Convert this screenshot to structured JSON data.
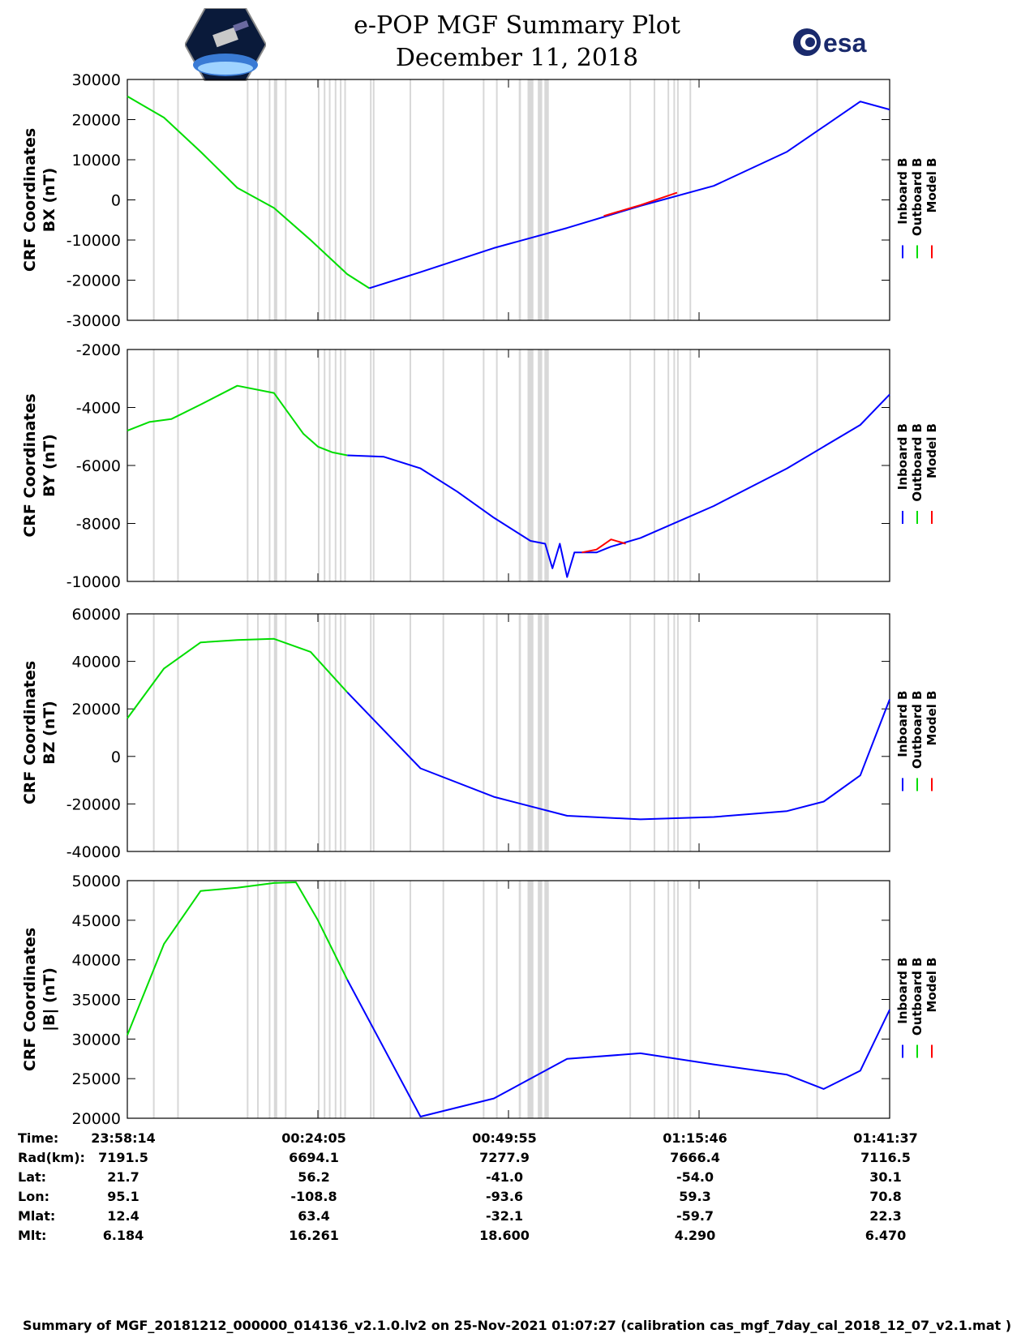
{
  "header": {
    "title": "e-POP MGF Summary Plot",
    "date": "December 11, 2018"
  },
  "logos": {
    "left": "cassiope-logo",
    "right_text": "esa"
  },
  "colors": {
    "inboard": "#0000ff",
    "outboard": "#00dd00",
    "model": "#ff0000",
    "gap": "#d8d8d8"
  },
  "legend": [
    "Inboard B",
    "Outboard B",
    "Model B"
  ],
  "chart_data": [
    {
      "type": "line",
      "ylabel_line1": "CRF Coordinates",
      "ylabel_line2": "BX (nT)",
      "ylim": [
        -30000,
        30000
      ],
      "yticks": [
        30000,
        20000,
        10000,
        0,
        -10000,
        -20000,
        -30000
      ],
      "xlim": [
        0,
        104
      ],
      "split_x": 34,
      "series": [
        {
          "name": "Outboard B",
          "x": [
            0,
            5,
            10,
            15,
            20,
            25,
            30,
            33
          ],
          "values": [
            25800,
            20500,
            12000,
            3000,
            -2000,
            -10000,
            -18500,
            -22000
          ]
        },
        {
          "name": "Inboard B",
          "x": [
            33,
            40,
            50,
            60,
            70,
            80,
            90,
            100,
            104
          ],
          "values": [
            -22000,
            -18000,
            -12000,
            -7000,
            -1500,
            3500,
            12000,
            24500,
            22500
          ]
        },
        {
          "name": "Model B",
          "x": [
            65,
            70,
            75
          ],
          "values": [
            -4000,
            -1300,
            1800
          ]
        }
      ]
    },
    {
      "type": "line",
      "ylabel_line1": "CRF Coordinates",
      "ylabel_line2": "BY (nT)",
      "ylim": [
        -10000,
        -2000
      ],
      "yticks": [
        -2000,
        -4000,
        -6000,
        -8000,
        -10000
      ],
      "xlim": [
        0,
        104
      ],
      "split_x": 30,
      "series": [
        {
          "name": "Outboard B",
          "x": [
            0,
            3,
            6,
            10,
            15,
            20,
            22,
            24,
            26,
            28,
            30
          ],
          "values": [
            -4800,
            -4500,
            -4400,
            -3900,
            -3250,
            -3500,
            -4200,
            -4900,
            -5350,
            -5550,
            -5650
          ]
        },
        {
          "name": "Inboard B",
          "x": [
            30,
            35,
            40,
            45,
            50,
            55,
            57,
            58,
            59,
            60,
            61,
            62,
            64,
            66,
            70,
            80,
            90,
            100,
            104
          ],
          "values": [
            -5650,
            -5700,
            -6100,
            -6900,
            -7800,
            -8600,
            -8700,
            -9550,
            -8700,
            -9850,
            -9000,
            -9000,
            -9000,
            -8800,
            -8500,
            -7400,
            -6100,
            -4600,
            -3550
          ]
        },
        {
          "name": "Model B",
          "x": [
            62,
            64,
            66,
            68
          ],
          "values": [
            -9000,
            -8900,
            -8550,
            -8700
          ]
        }
      ]
    },
    {
      "type": "line",
      "ylabel_line1": "CRF Coordinates",
      "ylabel_line2": "BZ (nT)",
      "ylim": [
        -40000,
        60000
      ],
      "yticks": [
        60000,
        40000,
        20000,
        0,
        -20000,
        -40000
      ],
      "xlim": [
        0,
        104
      ],
      "split_x": 30,
      "series": [
        {
          "name": "Outboard B",
          "x": [
            0,
            5,
            10,
            15,
            20,
            25,
            30
          ],
          "values": [
            16000,
            37000,
            48000,
            49000,
            49500,
            44000,
            27000
          ]
        },
        {
          "name": "Inboard B",
          "x": [
            30,
            40,
            50,
            60,
            70,
            80,
            90,
            95,
            100,
            104
          ],
          "values": [
            27000,
            -5000,
            -17000,
            -25000,
            -26500,
            -25500,
            -23000,
            -19000,
            -8000,
            24000
          ]
        },
        {
          "name": "Model B",
          "x": [],
          "values": []
        }
      ]
    },
    {
      "type": "line",
      "ylabel_line1": "CRF Coordinates",
      "ylabel_line2": "|B| (nT)",
      "ylim": [
        20000,
        50000
      ],
      "yticks": [
        50000,
        45000,
        40000,
        35000,
        30000,
        25000,
        20000
      ],
      "xlim": [
        0,
        104
      ],
      "split_x": 30,
      "series": [
        {
          "name": "Outboard B",
          "x": [
            0,
            5,
            10,
            15,
            20,
            23,
            26,
            30
          ],
          "values": [
            30500,
            42000,
            48700,
            49100,
            49700,
            49800,
            45000,
            37500
          ]
        },
        {
          "name": "Inboard B",
          "x": [
            30,
            40,
            50,
            60,
            70,
            80,
            90,
            95,
            100,
            104
          ],
          "values": [
            37500,
            20200,
            22500,
            27500,
            28200,
            26800,
            25500,
            23700,
            26000,
            33700
          ]
        },
        {
          "name": "Model B",
          "x": [],
          "values": []
        }
      ]
    }
  ],
  "gaps": [
    {
      "x": 3.5,
      "w": 0.15
    },
    {
      "x": 6.8,
      "w": 0.15
    },
    {
      "x": 16.3,
      "w": 0.15
    },
    {
      "x": 17.7,
      "w": 0.15
    },
    {
      "x": 19.3,
      "w": 0.15
    },
    {
      "x": 20.0,
      "w": 0.45
    },
    {
      "x": 21.5,
      "w": 0.15
    },
    {
      "x": 26.0,
      "w": 0.15
    },
    {
      "x": 26.8,
      "w": 0.15
    },
    {
      "x": 27.5,
      "w": 0.15
    },
    {
      "x": 28.3,
      "w": 0.15
    },
    {
      "x": 29.0,
      "w": 0.15
    },
    {
      "x": 29.6,
      "w": 0.15
    },
    {
      "x": 33.1,
      "w": 0.15
    },
    {
      "x": 33.5,
      "w": 0.15
    },
    {
      "x": 38.5,
      "w": 0.15
    },
    {
      "x": 43.0,
      "w": 0.15
    },
    {
      "x": 48.5,
      "w": 0.15
    },
    {
      "x": 50.3,
      "w": 0.15
    },
    {
      "x": 53.4,
      "w": 0.3
    },
    {
      "x": 54.6,
      "w": 0.8
    },
    {
      "x": 56.0,
      "w": 0.6
    },
    {
      "x": 56.9,
      "w": 0.6
    },
    {
      "x": 68.5,
      "w": 0.15
    },
    {
      "x": 71.8,
      "w": 0.15
    },
    {
      "x": 73.7,
      "w": 0.15
    },
    {
      "x": 74.5,
      "w": 0.15
    },
    {
      "x": 75.0,
      "w": 0.15
    },
    {
      "x": 76.7,
      "w": 0.15
    },
    {
      "x": 94.0,
      "w": 0.15
    }
  ],
  "info_table": {
    "labels": [
      "Time:",
      "Rad(km):",
      "Lat:",
      "Lon:",
      "Mlat:",
      "Mlt:"
    ],
    "columns": [
      [
        "23:58:14",
        "7191.5",
        "21.7",
        "95.1",
        "12.4",
        "6.184"
      ],
      [
        "00:24:05",
        "6694.1",
        "56.2",
        "-108.8",
        "63.4",
        "16.261"
      ],
      [
        "00:49:55",
        "7277.9",
        "-41.0",
        "-93.6",
        "-32.1",
        "18.600"
      ],
      [
        "01:15:46",
        "7666.4",
        "-54.0",
        "59.3",
        "-59.7",
        "4.290"
      ],
      [
        "01:41:37",
        "7116.5",
        "30.1",
        "70.8",
        "22.3",
        "6.470"
      ]
    ]
  },
  "footer": "Summary of MGF_20181212_000000_014136_v2.1.0.lv2 on 25-Nov-2021 01:07:27 (calibration cas_mgf_7day_cal_2018_12_07_v2.1.mat )"
}
